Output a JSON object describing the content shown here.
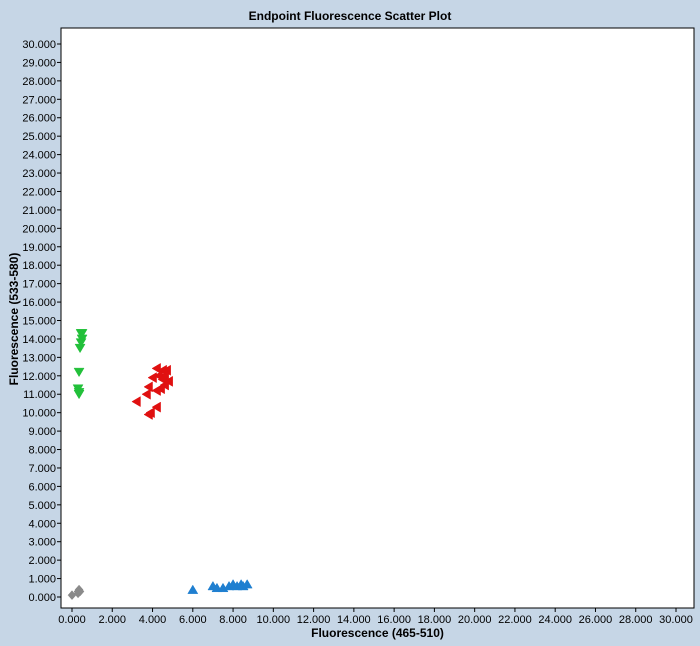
{
  "chart_data": {
    "type": "scatter",
    "title": "Endpoint Fluorescence Scatter Plot",
    "xlabel": "Fluorescence (465-510)",
    "ylabel": "Fluorescence (533-580)",
    "xlim": [
      0,
      30
    ],
    "ylim": [
      0,
      30
    ],
    "xticks": [
      0,
      2,
      4,
      6,
      8,
      10,
      12,
      14,
      16,
      18,
      20,
      22,
      24,
      26,
      28,
      30
    ],
    "yticks": [
      0,
      1,
      2,
      3,
      4,
      5,
      6,
      7,
      8,
      9,
      10,
      11,
      12,
      13,
      14,
      15,
      16,
      17,
      18,
      19,
      20,
      21,
      22,
      23,
      24,
      25,
      26,
      27,
      28,
      29,
      30
    ],
    "tick_labels_x": [
      "0.000",
      "2.000",
      "4.000",
      "6.000",
      "8.000",
      "10.000",
      "12.000",
      "14.000",
      "16.000",
      "18.000",
      "20.000",
      "22.000",
      "24.000",
      "26.000",
      "28.000",
      "30.000"
    ],
    "tick_labels_y": [
      "0.000",
      "1.000",
      "2.000",
      "3.000",
      "4.000",
      "5.000",
      "6.000",
      "7.000",
      "8.000",
      "9.000",
      "10.000",
      "11.000",
      "12.000",
      "13.000",
      "14.000",
      "15.000",
      "16.000",
      "17.000",
      "18.000",
      "19.000",
      "20.000",
      "21.000",
      "22.000",
      "23.000",
      "24.000",
      "25.000",
      "26.000",
      "27.000",
      "28.000",
      "29.000",
      "30.000"
    ],
    "grid": false,
    "series": [
      {
        "color": "#22c03a",
        "marker": "triangle-down",
        "points": [
          [
            0.45,
            14.3
          ],
          [
            0.5,
            14.3
          ],
          [
            0.5,
            14.0
          ],
          [
            0.45,
            13.8
          ],
          [
            0.4,
            13.5
          ],
          [
            0.35,
            12.2
          ],
          [
            0.3,
            11.3
          ],
          [
            0.35,
            11.1
          ],
          [
            0.35,
            11.0
          ]
        ]
      },
      {
        "color": "#e01010",
        "marker": "triangle-left",
        "points": [
          [
            4.2,
            12.4
          ],
          [
            4.5,
            12.3
          ],
          [
            4.7,
            12.3
          ],
          [
            4.6,
            12.0
          ],
          [
            4.3,
            12.0
          ],
          [
            4.0,
            11.9
          ],
          [
            4.5,
            11.8
          ],
          [
            4.8,
            11.7
          ],
          [
            4.6,
            11.5
          ],
          [
            3.8,
            11.4
          ],
          [
            4.4,
            11.3
          ],
          [
            4.2,
            11.2
          ],
          [
            3.7,
            11.0
          ],
          [
            3.2,
            10.6
          ],
          [
            4.2,
            10.3
          ],
          [
            3.9,
            10.0
          ],
          [
            3.8,
            9.9
          ]
        ]
      },
      {
        "color": "#1f7fd0",
        "marker": "triangle-up",
        "points": [
          [
            6.0,
            0.4
          ],
          [
            7.0,
            0.6
          ],
          [
            7.2,
            0.5
          ],
          [
            7.5,
            0.5
          ],
          [
            7.8,
            0.6
          ],
          [
            8.0,
            0.7
          ],
          [
            8.2,
            0.6
          ],
          [
            8.4,
            0.7
          ],
          [
            8.5,
            0.6
          ],
          [
            8.7,
            0.7
          ]
        ]
      },
      {
        "color": "#8a8a8a",
        "marker": "diamond",
        "points": [
          [
            0.0,
            0.1
          ],
          [
            0.3,
            0.3
          ],
          [
            0.35,
            0.4
          ],
          [
            0.4,
            0.3
          ],
          [
            0.3,
            0.2
          ]
        ]
      }
    ]
  }
}
